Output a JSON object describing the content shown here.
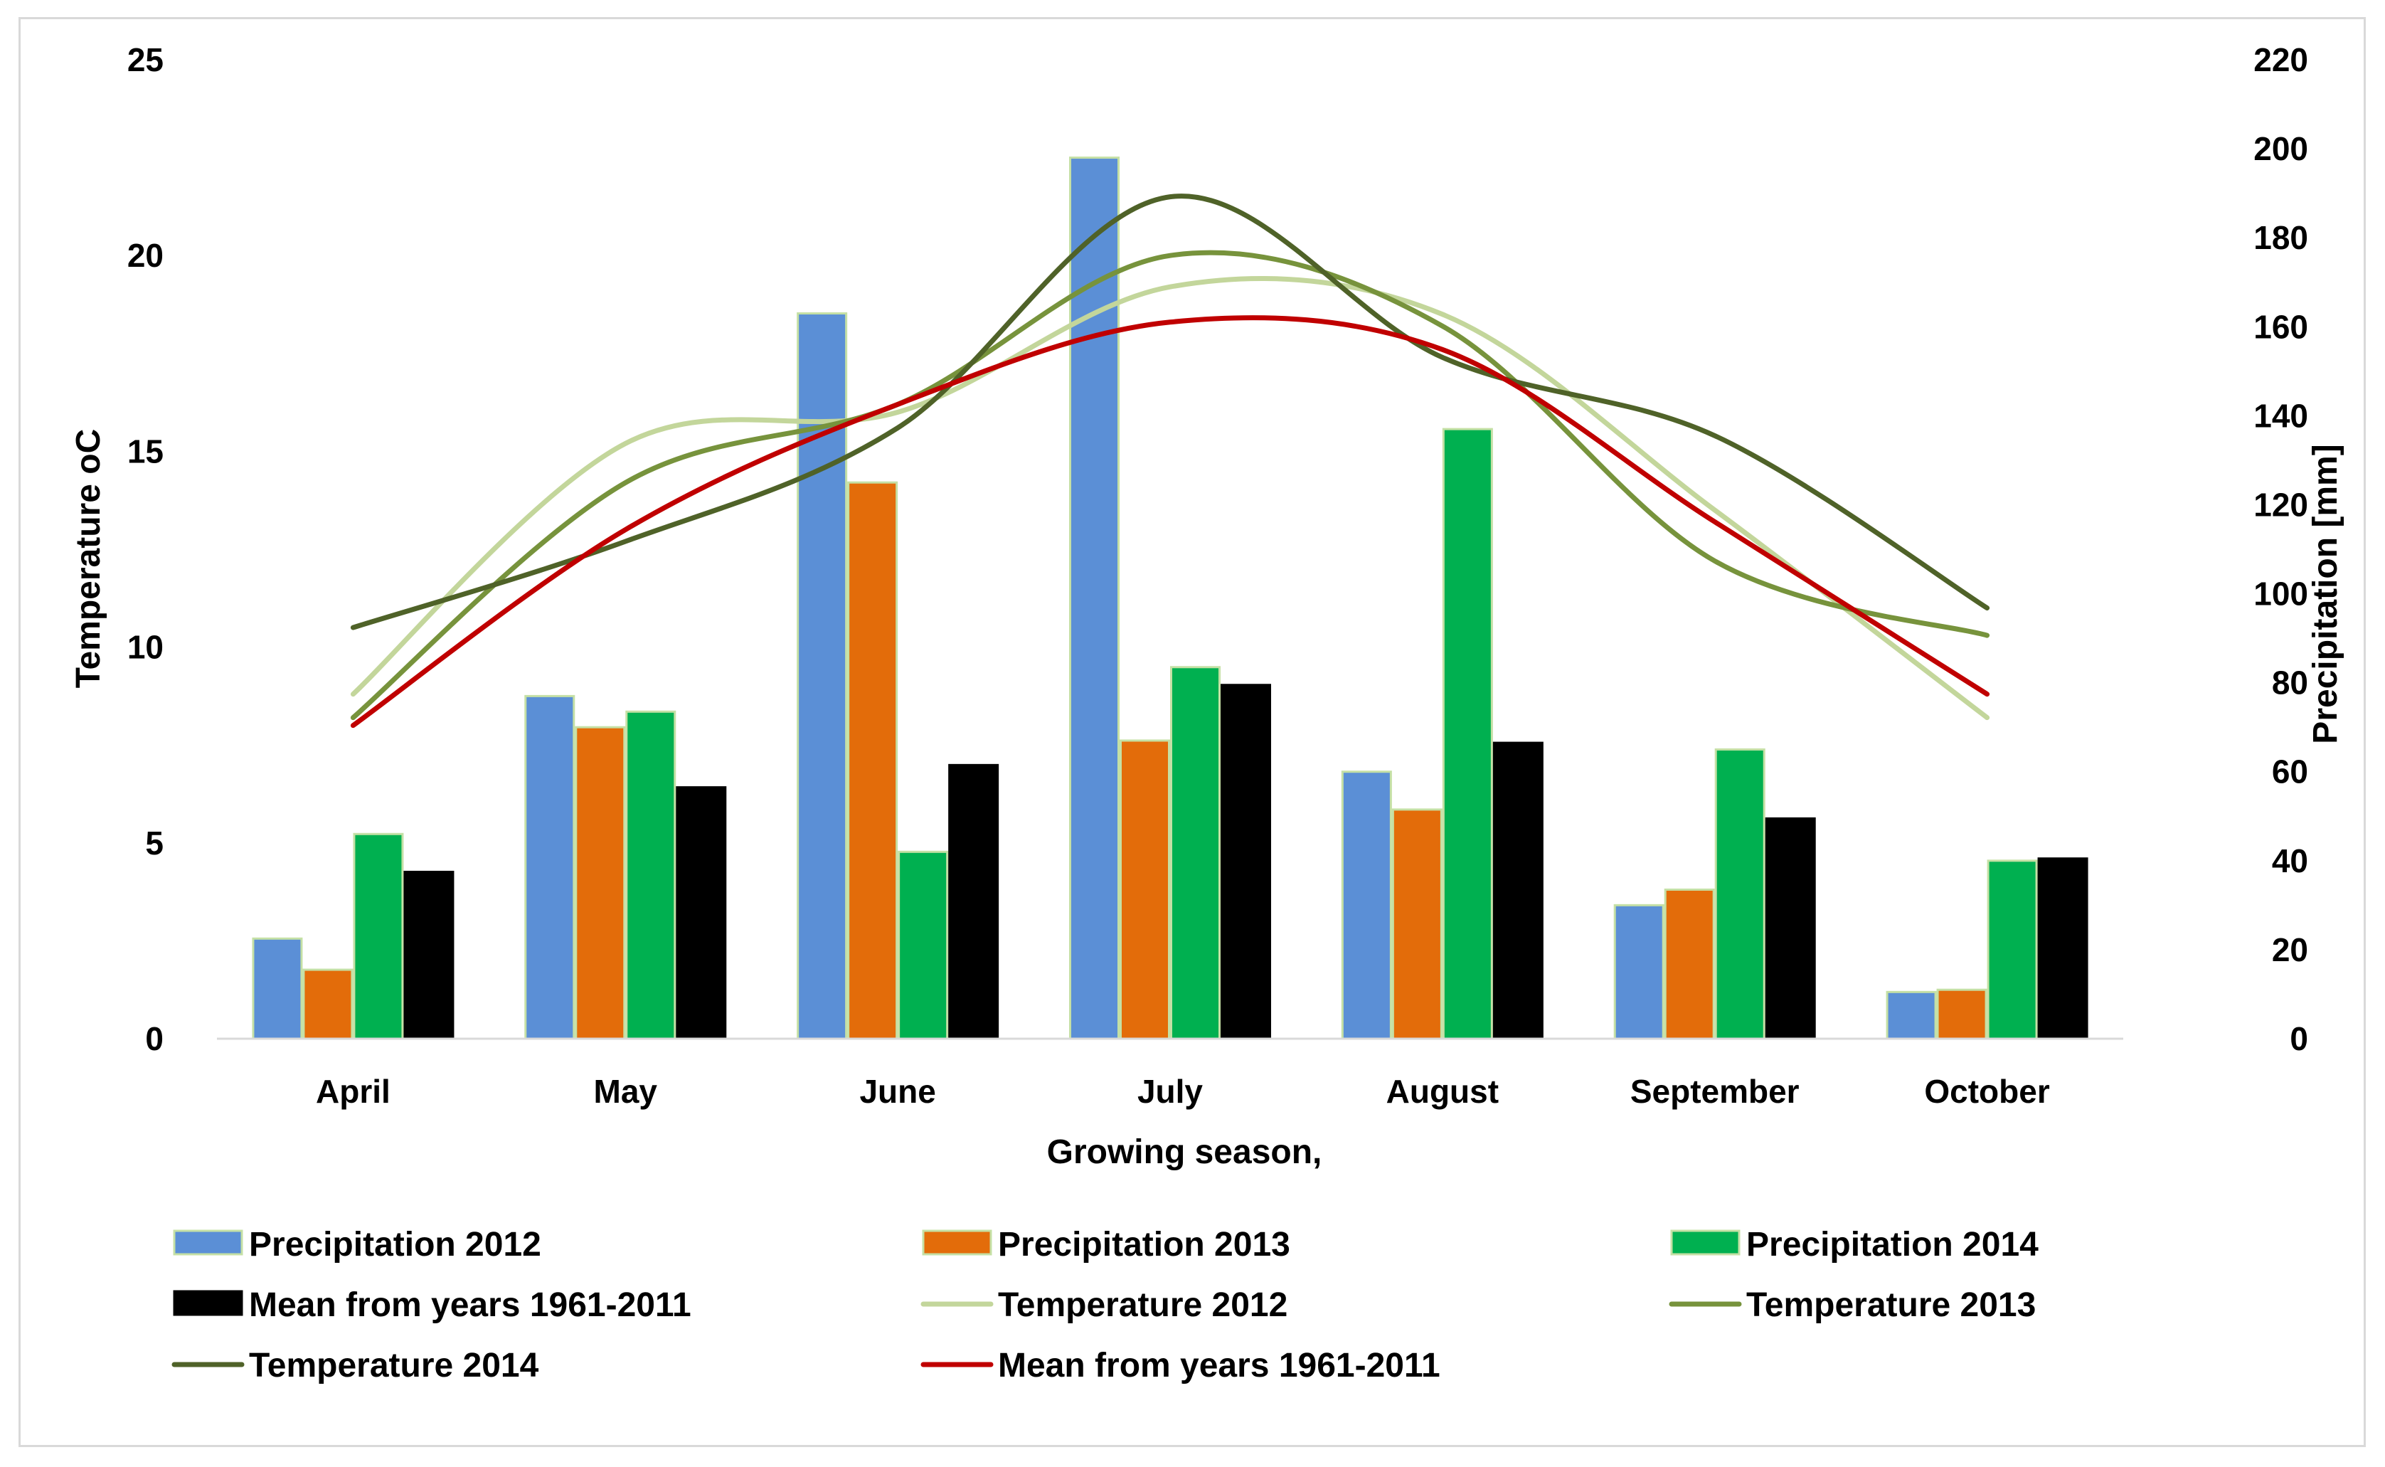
{
  "chart_data": {
    "type": "bar",
    "title": "",
    "categories": [
      "April",
      "May",
      "June",
      "July",
      "August",
      "September",
      "October"
    ],
    "xlabel": "Growing season,",
    "ylabel_left": "Temperature oC",
    "ylabel_right": "Precipitation [mm]",
    "ylim_left": [
      0,
      25
    ],
    "yticks_left": [
      0,
      5,
      10,
      15,
      20,
      25
    ],
    "ylim_right": [
      0,
      220
    ],
    "yticks_right": [
      0,
      20,
      40,
      60,
      80,
      100,
      120,
      140,
      160,
      180,
      200,
      220
    ],
    "bar_series": [
      {
        "name": "Precipitation 2012",
        "axis": "right",
        "color": "#5b8fd6",
        "edge": "#c5e0a5",
        "values": [
          22.5,
          77,
          163,
          198,
          60,
          30,
          10.5
        ]
      },
      {
        "name": "Precipitation 2013",
        "axis": "right",
        "color": "#e36c0a",
        "edge": "#c5e0a5",
        "values": [
          15.5,
          70,
          125,
          67,
          51.5,
          33.5,
          11
        ]
      },
      {
        "name": "Precipitation 2014",
        "axis": "right",
        "color": "#00b050",
        "edge": "#c5e0a5",
        "values": [
          46,
          73.5,
          42,
          83.5,
          137,
          65,
          40
        ]
      },
      {
        "name": "Mean from years 1961-2011",
        "axis": "right",
        "color": "#000000",
        "edge": "#000000",
        "values": [
          37.5,
          56.5,
          61.5,
          79.5,
          66.5,
          49.5,
          40.5
        ]
      }
    ],
    "line_series": [
      {
        "name": "Temperature 2012",
        "axis": "left",
        "color": "#c3d69b",
        "values": [
          8.8,
          15.2,
          16,
          19.2,
          18.5,
          13.5,
          8.2
        ]
      },
      {
        "name": "Temperature 2013",
        "axis": "left",
        "color": "#77933c",
        "values": [
          8.2,
          14.2,
          16.2,
          20,
          18.2,
          12.2,
          10.3
        ]
      },
      {
        "name": "Temperature 2014",
        "axis": "left",
        "color": "#4f6228",
        "values": [
          10.5,
          12.7,
          15.6,
          21.5,
          17.4,
          15.4,
          11
        ]
      },
      {
        "name": "Mean from years 1961-2011",
        "axis": "left",
        "color": "#c00000",
        "values": [
          8,
          13,
          16.2,
          18.3,
          17.6,
          13.2,
          8.8
        ]
      }
    ],
    "legend": {
      "position": "bottom",
      "entries": [
        {
          "label": "Precipitation 2012",
          "kind": "bar",
          "color": "#5b8fd6"
        },
        {
          "label": "Precipitation 2013",
          "kind": "bar",
          "color": "#e36c0a"
        },
        {
          "label": "Precipitation 2014",
          "kind": "bar",
          "color": "#00b050"
        },
        {
          "label": "Mean from years 1961-2011",
          "kind": "bar",
          "color": "#000000"
        },
        {
          "label": "Temperature 2012",
          "kind": "line",
          "color": "#c3d69b"
        },
        {
          "label": "Temperature 2013",
          "kind": "line",
          "color": "#77933c"
        },
        {
          "label": "Temperature 2014",
          "kind": "line",
          "color": "#4f6228"
        },
        {
          "label": "Mean from years 1961-2011",
          "kind": "line",
          "color": "#c00000"
        }
      ]
    },
    "grid": false
  }
}
